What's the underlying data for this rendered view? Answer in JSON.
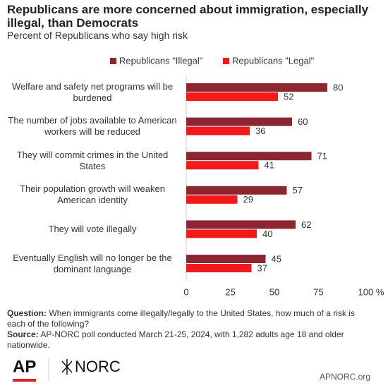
{
  "chart_data": {
    "type": "hbar",
    "title": "Republicans are more concerned about immigration, especially illegal, than Democrats",
    "subtitle": "Percent of Republicans who say high risk",
    "categories": [
      "Welfare and safety net programs will be burdened",
      "The number of jobs available to American workers will be reduced",
      "They will commit crimes in the United States",
      "Their population growth will weaken American identity",
      "They will vote illegally",
      "Eventually English will no longer be the dominant language"
    ],
    "series": [
      {
        "name": "Republicans \"Illegal\"",
        "color": "#8c2633",
        "values": [
          80,
          60,
          71,
          57,
          62,
          45
        ]
      },
      {
        "name": "Republicans \"Legal\"",
        "color": "#f2191b",
        "values": [
          52,
          36,
          41,
          29,
          40,
          37
        ]
      }
    ],
    "xlim": [
      0,
      100
    ],
    "xticks": [
      0,
      25,
      50,
      75,
      {
        "value": 100,
        "label": "100 %"
      }
    ],
    "question_label": "Question:",
    "question": "When immigrants come illegally/legally to the United States, how much of a risk is each of the following?",
    "source_label": "Source:",
    "source": "AP-NORC poll conducted March 21-25, 2024, with 1,282 adults age 18 and older nationwide.",
    "logo_ap": "AP",
    "logo_norc": "NORC",
    "site": "APNORC.org"
  }
}
